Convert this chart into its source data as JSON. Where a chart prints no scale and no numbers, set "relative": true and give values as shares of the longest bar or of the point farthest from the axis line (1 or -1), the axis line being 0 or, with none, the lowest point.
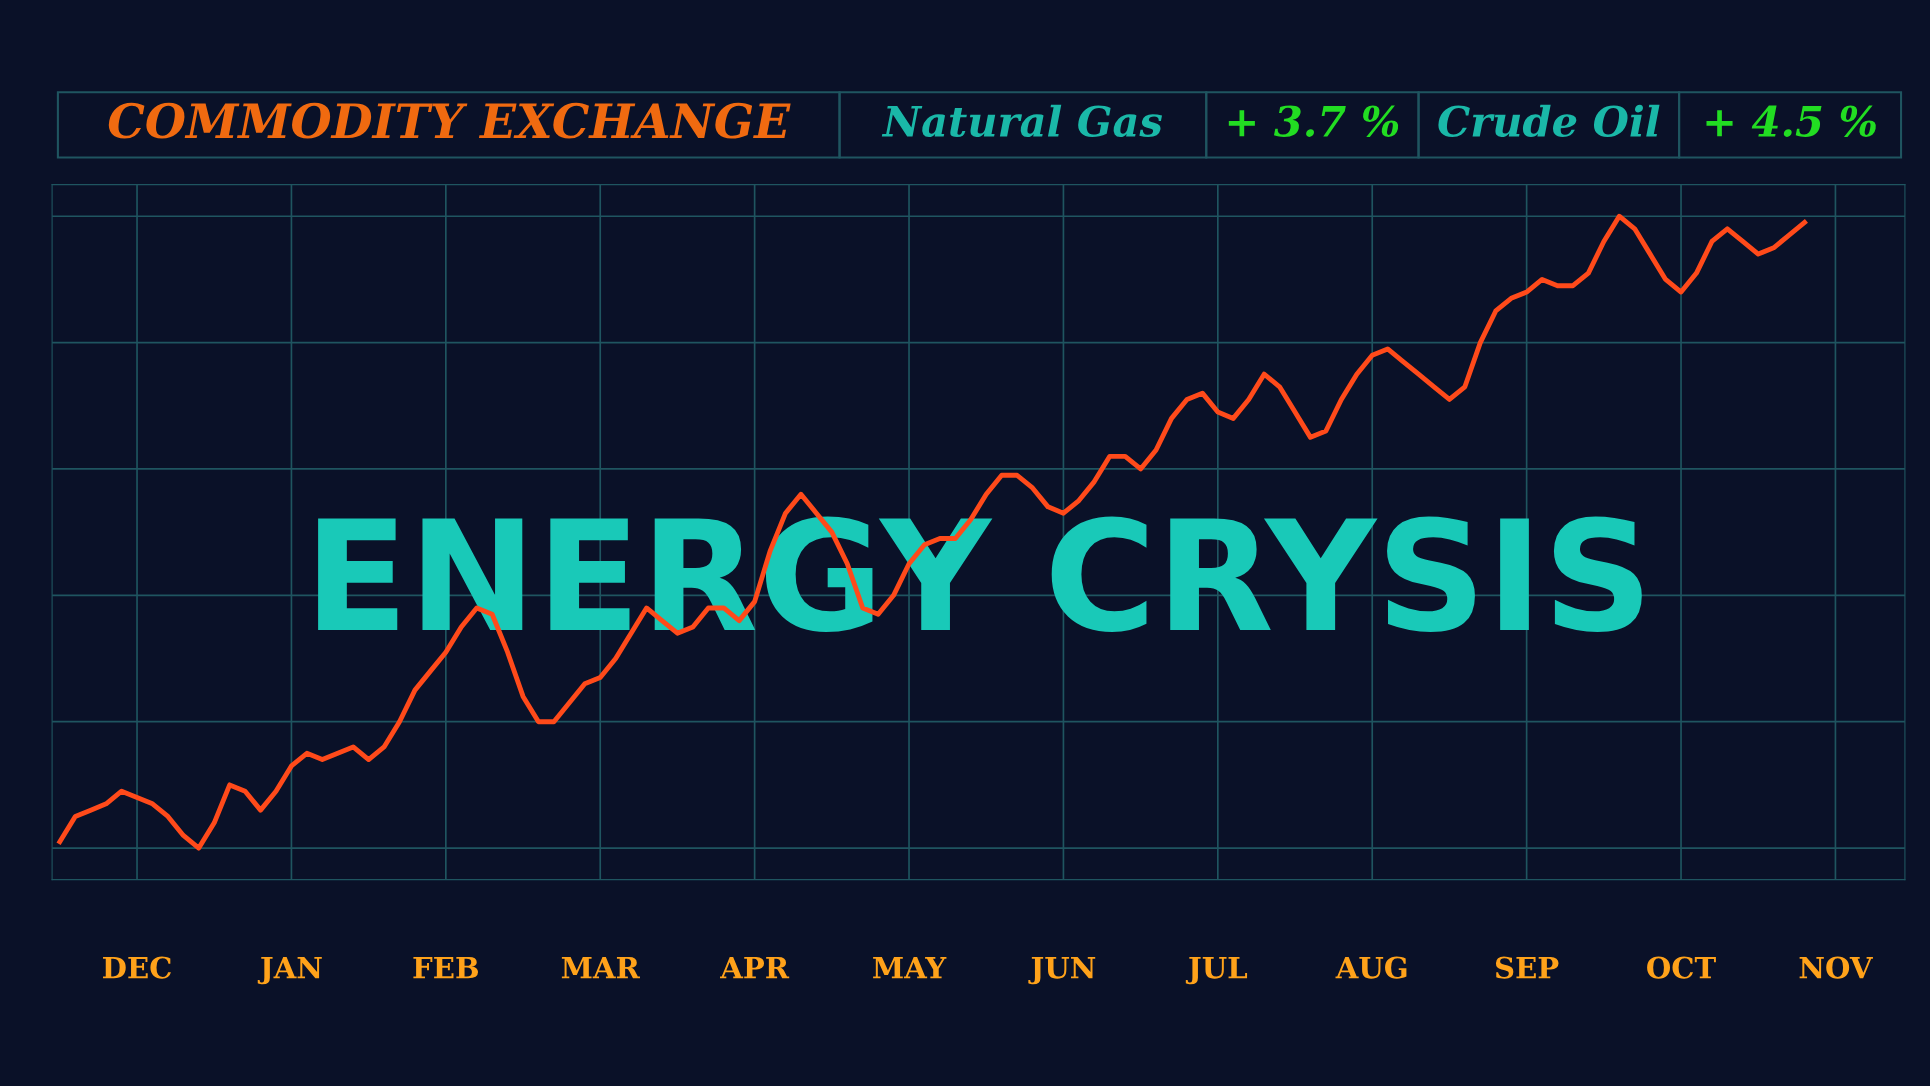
{
  "chart_data": {
    "type": "line",
    "relative": true,
    "title": "ENERGY CRYSIS",
    "annotations": [
      "COMMODITY EXCHANGE",
      "Natural Gas",
      "+ 3.7 %",
      "Crude Oil",
      "+ 4.5 %"
    ],
    "grid": true,
    "legend": false,
    "marker": "none",
    "line_style": "solid",
    "categories": [
      null,
      null,
      null,
      null,
      null,
      "DEC",
      null,
      null,
      null,
      null,
      null,
      null,
      null,
      null,
      null,
      "JAN",
      null,
      null,
      null,
      null,
      null,
      null,
      null,
      null,
      null,
      "FEB",
      null,
      null,
      null,
      null,
      null,
      null,
      null,
      null,
      null,
      "MAR",
      null,
      null,
      null,
      null,
      null,
      null,
      null,
      null,
      null,
      "APR",
      null,
      null,
      null,
      null,
      null,
      null,
      null,
      null,
      null,
      "MAY",
      null,
      null,
      null,
      null,
      null,
      null,
      null,
      null,
      null,
      "JUN",
      null,
      null,
      null,
      null,
      null,
      null,
      null,
      null,
      null,
      "JUL",
      null,
      null,
      null,
      null,
      null,
      null,
      null,
      null,
      null,
      "AUG",
      null,
      null,
      null,
      null,
      null,
      null,
      null,
      null,
      null,
      "SEP",
      null,
      null,
      null,
      null,
      null,
      null,
      null,
      null,
      null,
      "OCT",
      null,
      null,
      null,
      null,
      null,
      null,
      null,
      null,
      null,
      "NOV",
      null,
      null,
      null,
      null
    ],
    "series": [
      {
        "color": "#ff4a1a",
        "values": [
          0.01,
          0.05,
          0.06,
          0.07,
          0.09,
          0.08,
          0.07,
          0.05,
          0.02,
          0,
          0.04,
          0.1,
          0.09,
          0.06,
          0.09,
          0.13,
          0.15,
          0.14,
          0.15,
          0.16,
          0.14,
          0.16,
          0.2,
          0.25,
          0.28,
          0.31,
          0.35,
          0.38,
          0.37,
          0.31,
          0.24,
          0.2,
          0.2,
          0.23,
          0.26,
          0.27,
          0.3,
          0.34,
          0.38,
          0.36,
          0.34,
          0.35,
          0.38,
          0.38,
          0.36,
          0.39,
          0.47,
          0.53,
          0.56,
          0.53,
          0.5,
          0.45,
          0.38,
          0.37,
          0.4,
          0.45,
          0.48,
          0.49,
          0.49,
          0.52,
          0.56,
          0.59,
          0.59,
          0.57,
          0.54,
          0.53,
          0.55,
          0.58,
          0.62,
          0.62,
          0.6,
          0.63,
          0.68,
          0.71,
          0.72,
          0.69,
          0.68,
          0.71,
          0.75,
          0.73,
          0.69,
          0.65,
          0.66,
          0.71,
          0.75,
          0.78,
          0.79,
          0.77,
          0.75,
          0.73,
          0.71,
          0.73,
          0.8,
          0.85,
          0.87,
          0.88,
          0.9,
          0.89,
          0.89,
          0.91,
          0.96,
          1,
          0.98,
          0.94,
          0.9,
          0.88,
          0.91,
          0.96,
          0.98,
          0.96,
          0.94,
          0.95,
          0.97,
          0.99,
          null,
          null,
          null,
          null,
          null,
          null
        ]
      }
    ]
  }
}
